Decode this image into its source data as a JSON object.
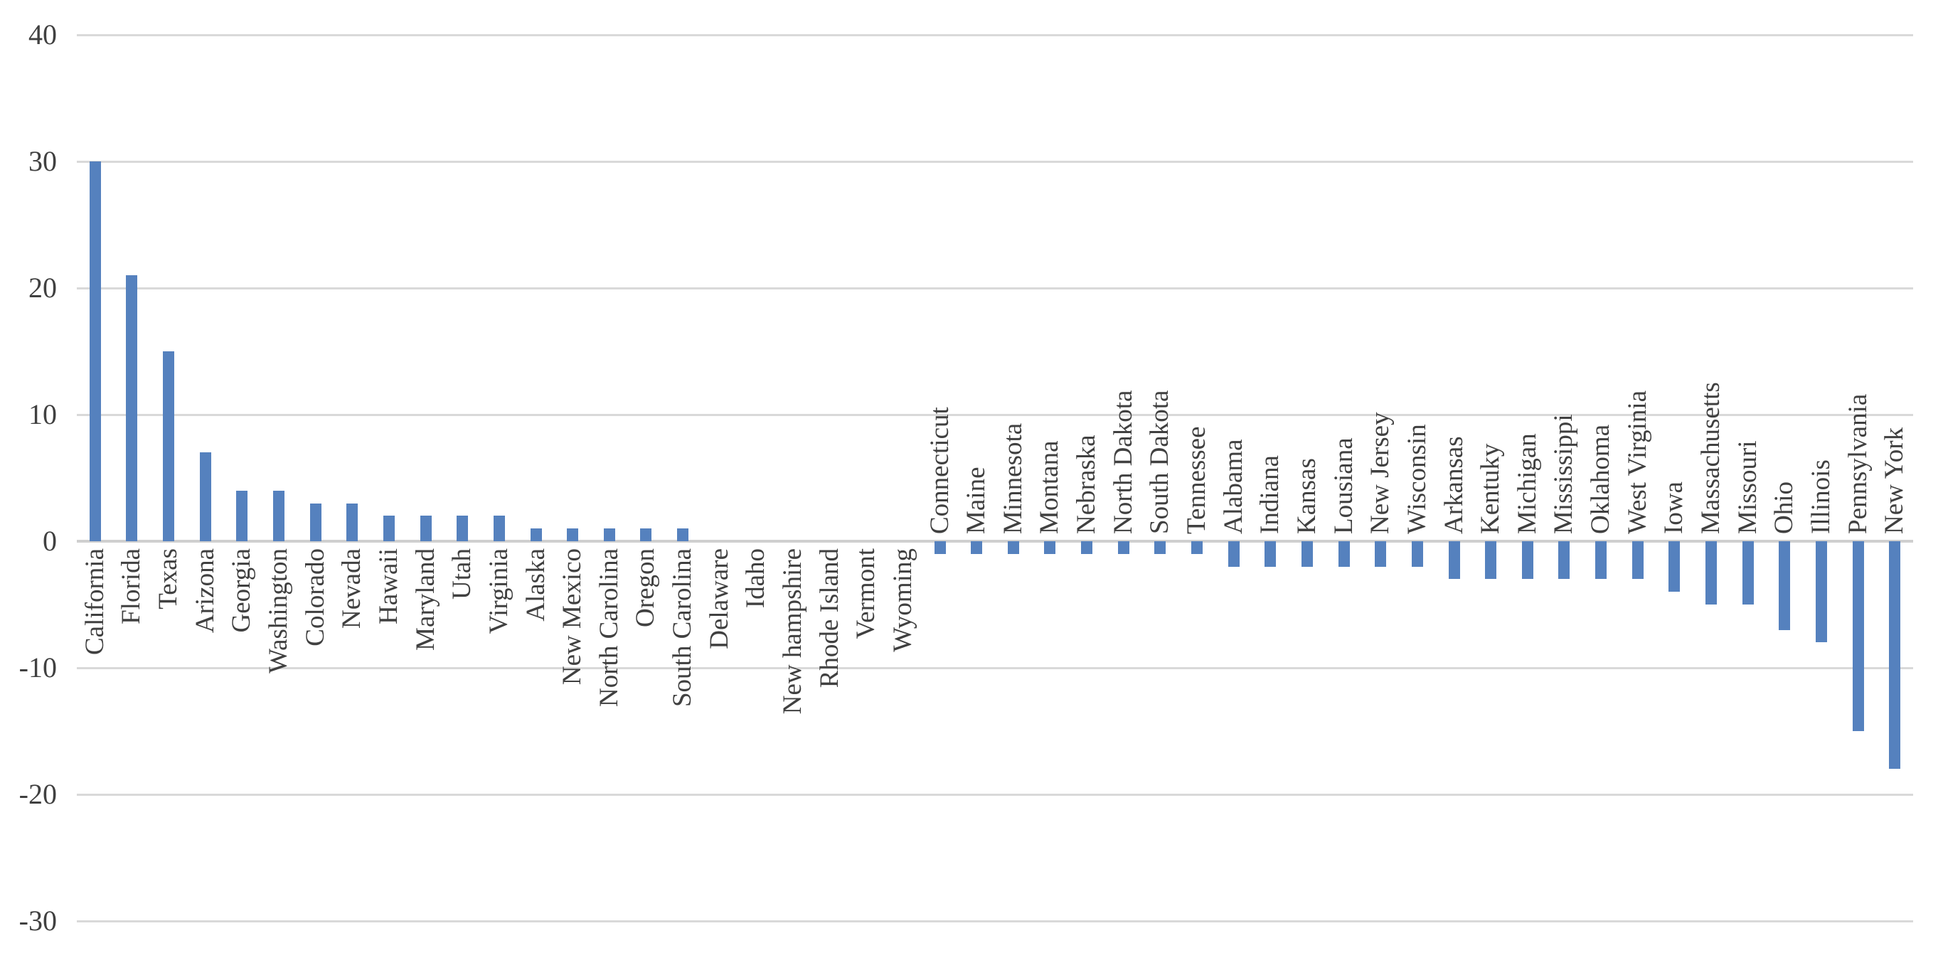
{
  "chart_data": {
    "type": "bar",
    "title": "",
    "xlabel": "",
    "ylabel": "",
    "categories": [
      "California",
      "Florida",
      "Texas",
      "Arizona",
      "Georgia",
      "Washington",
      "Colorado",
      "Nevada",
      "Hawaii",
      "Maryland",
      "Utah",
      "Virginia",
      "Alaska",
      "New Mexico",
      "North Carolina",
      "Oregon",
      "South Carolina",
      "Delaware",
      "Idaho",
      "New hampshire",
      "Rhode Island",
      "Vermont",
      "Wyoming",
      "Connecticut",
      "Maine",
      "Minnesota",
      "Montana",
      "Nebraska",
      "North Dakota",
      "South Dakota",
      "Tennessee",
      "Alabama",
      "Indiana",
      "Kansas",
      "Lousiana",
      "New Jersey",
      "Wisconsin",
      "Arkansas",
      "Kentuky",
      "Michigan",
      "Mississippi",
      "Oklahoma",
      "West Virginia",
      "Iowa",
      "Massachusetts",
      "Missouri",
      "Ohio",
      "Illinois",
      "Pennsylvania",
      "New York"
    ],
    "values": [
      30,
      21,
      15,
      7,
      4,
      4,
      3,
      3,
      2,
      2,
      2,
      2,
      1,
      1,
      1,
      1,
      1,
      0,
      0,
      0,
      0,
      0,
      0,
      -1,
      -1,
      -1,
      -1,
      -1,
      -1,
      -1,
      -1,
      -2,
      -2,
      -2,
      -2,
      -2,
      -2,
      -3,
      -3,
      -3,
      -3,
      -3,
      -3,
      -4,
      -5,
      -5,
      -7,
      -8,
      -15,
      -18
    ],
    "ylim": [
      -30,
      40
    ],
    "yticks": [
      40,
      30,
      20,
      10,
      0,
      -10,
      -20,
      -30
    ],
    "y_tick_labels": [
      "40",
      "30",
      "20",
      "10",
      "0",
      "-10",
      "-20",
      "-30"
    ],
    "grid": true,
    "legend": "none",
    "bar_color": "#5581BE",
    "gridline_color": "#D9D9D9",
    "axis_line_color": "#CFCFCF",
    "text_color": "#404040"
  }
}
